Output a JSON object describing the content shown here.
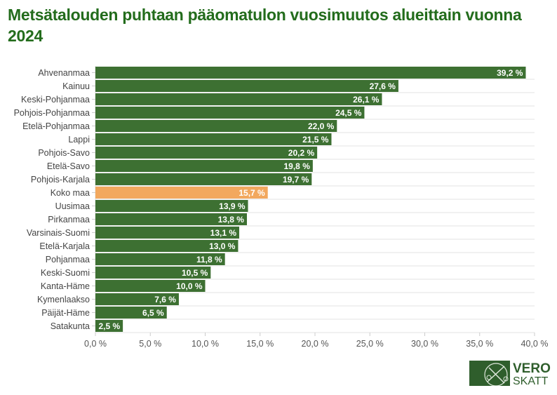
{
  "chart_data": {
    "type": "bar",
    "orientation": "horizontal",
    "title": "Metsätalouden puhtaan pääomatulon vuosimuutos alueittain vuonna 2024",
    "categories": [
      "Ahvenanmaa",
      "Kainuu",
      "Keski-Pohjanmaa",
      "Pohjois-Pohjanmaa",
      "Etelä-Pohjanmaa",
      "Lappi",
      "Pohjois-Savo",
      "Etelä-Savo",
      "Pohjois-Karjala",
      "Koko maa",
      "Uusimaa",
      "Pirkanmaa",
      "Varsinais-Suomi",
      "Etelä-Karjala",
      "Pohjanmaa",
      "Keski-Suomi",
      "Kanta-Häme",
      "Kymenlaakso",
      "Päijät-Häme",
      "Satakunta"
    ],
    "values": [
      39.2,
      27.6,
      26.1,
      24.5,
      22.0,
      21.5,
      20.2,
      19.8,
      19.7,
      15.7,
      13.9,
      13.8,
      13.1,
      13.0,
      11.8,
      10.5,
      10.0,
      7.6,
      6.5,
      2.5
    ],
    "data_labels": [
      "39,2 %",
      "27,6 %",
      "26,1 %",
      "24,5 %",
      "22,0 %",
      "21,5 %",
      "20,2 %",
      "19,8 %",
      "19,7 %",
      "15,7 %",
      "13,9 %",
      "13,8 %",
      "13,1 %",
      "13,0 %",
      "11,8 %",
      "10,5 %",
      "10,0 %",
      "7,6 %",
      "6,5 %",
      "2,5 %"
    ],
    "highlight_category": "Koko maa",
    "xlim": [
      0,
      40
    ],
    "xticks": [
      0,
      5,
      10,
      15,
      20,
      25,
      30,
      35,
      40
    ],
    "xtick_labels": [
      "0,0 %",
      "5,0 %",
      "10,0 %",
      "15,0 %",
      "20,0 %",
      "25,0 %",
      "30,0 %",
      "35,0 %",
      "40,0 %"
    ],
    "xlabel": "",
    "ylabel": "",
    "grid": true,
    "colors": {
      "bar": "#3d7032",
      "highlight": "#f2a85e",
      "title": "#236c1c"
    }
  },
  "logo": {
    "line1": "VERO",
    "line2": "SKATT"
  }
}
